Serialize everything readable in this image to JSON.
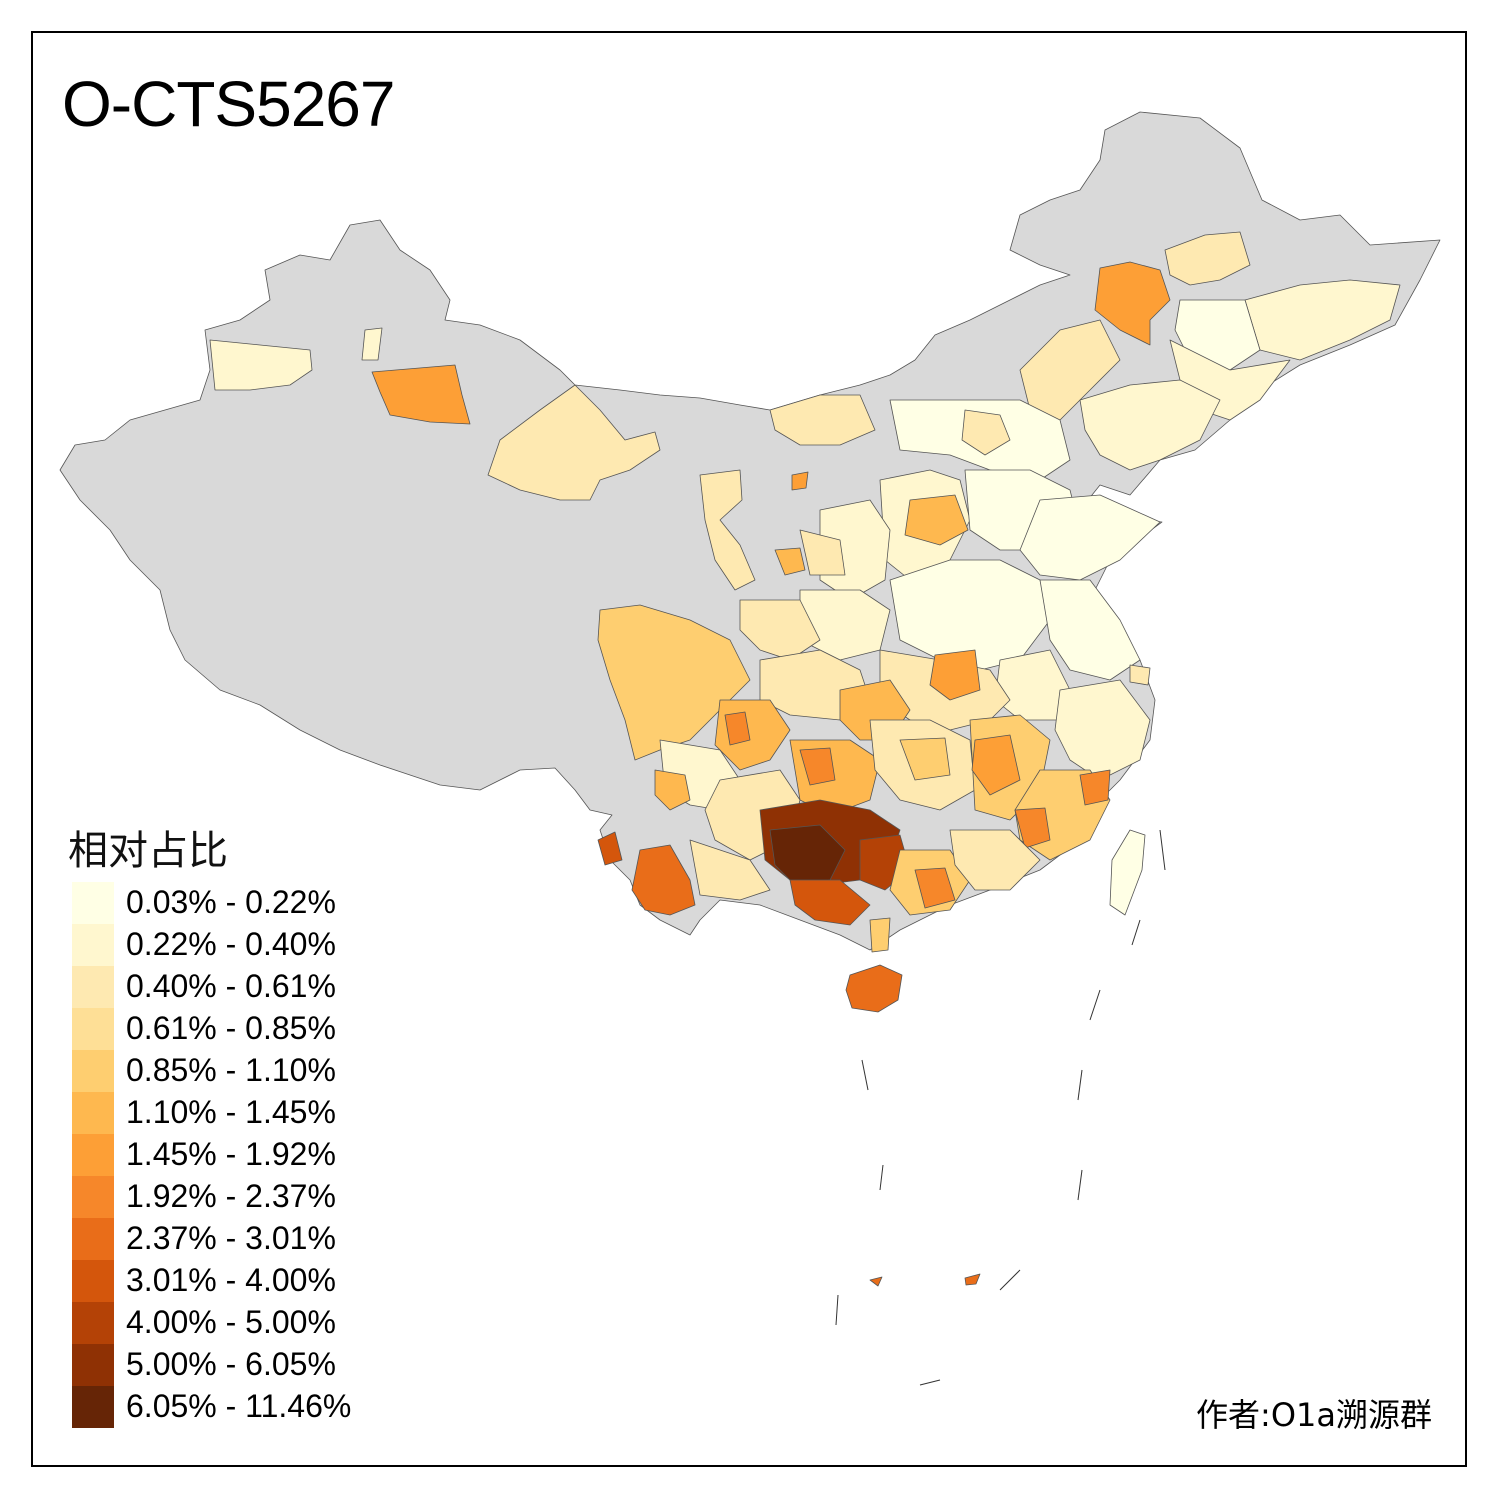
{
  "title": "O-CTS5267",
  "legend": {
    "title": "相对占比",
    "items": [
      {
        "label": "0.03% - 0.22%",
        "color": "#ffffe5"
      },
      {
        "label": "0.22% - 0.40%",
        "color": "#fff7cf"
      },
      {
        "label": "0.40% - 0.61%",
        "color": "#fee9b1"
      },
      {
        "label": "0.61% - 0.85%",
        "color": "#fedf96"
      },
      {
        "label": "0.85% - 1.10%",
        "color": "#fece70"
      },
      {
        "label": "1.10% - 1.45%",
        "color": "#feb84f"
      },
      {
        "label": "1.45% - 1.92%",
        "color": "#fd9f36"
      },
      {
        "label": "1.92% - 2.37%",
        "color": "#f6872a"
      },
      {
        "label": "2.37% - 3.01%",
        "color": "#e96d19"
      },
      {
        "label": "3.01% - 4.00%",
        "color": "#d4560c"
      },
      {
        "label": "4.00% - 5.00%",
        "color": "#b44206"
      },
      {
        "label": "5.00% - 6.05%",
        "color": "#8f3104"
      },
      {
        "label": "6.05% - 11.46%",
        "color": "#662506"
      }
    ]
  },
  "no_data_color": "#d9d9d9",
  "author": "作者:O1a溯源群"
}
